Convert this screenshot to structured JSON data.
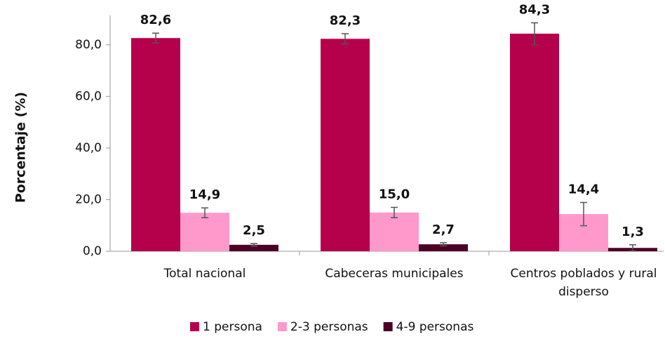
{
  "chart_data": {
    "type": "bar",
    "y_label": "Porcentaje (%)",
    "categories": [
      "Total nacional",
      "Cabeceras municipales",
      "Centros poblados y rural disperso"
    ],
    "series": [
      {
        "name": "1 persona",
        "color": "#b5004b",
        "values": [
          82.6,
          82.3,
          84.3
        ],
        "value_labels": [
          "82,6",
          "82,3",
          "84,3"
        ],
        "errors": [
          1.9,
          2.0,
          4.2
        ]
      },
      {
        "name": "2-3 personas",
        "color": "#ff99cc",
        "values": [
          14.9,
          15.0,
          14.4
        ],
        "value_labels": [
          "14,9",
          "15,0",
          "14,4"
        ],
        "errors": [
          1.9,
          2.0,
          4.5
        ]
      },
      {
        "name": "4-9 personas",
        "color": "#4d0026",
        "values": [
          2.5,
          2.7,
          1.3
        ],
        "value_labels": [
          "2,5",
          "2,7",
          "1,3"
        ],
        "errors": [
          0.5,
          0.6,
          1.2
        ]
      }
    ],
    "ylim": [
      0,
      90
    ],
    "yticks": [
      {
        "value": 0,
        "label": "0,0"
      },
      {
        "value": 20,
        "label": "20,0"
      },
      {
        "value": 40,
        "label": "40,0"
      },
      {
        "value": 60,
        "label": "60,0"
      },
      {
        "value": 80,
        "label": "80,0"
      }
    ],
    "legend": "bottom"
  }
}
